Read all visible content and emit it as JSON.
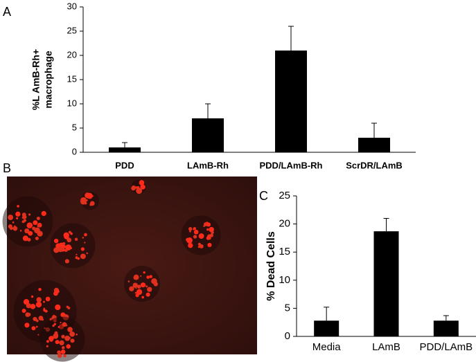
{
  "chart_data": [
    {
      "type": "bar",
      "panel": "A",
      "ylabel": [
        "%L AmB-Rh+",
        "macrophage"
      ],
      "categories": [
        "PDD",
        "LAmB-Rh",
        "PDD/LAmB-Rh",
        "ScrDR/LAmB"
      ],
      "values": [
        1,
        7,
        21,
        3
      ],
      "errors": [
        1,
        3,
        5,
        3
      ],
      "color": "#000000",
      "ylim": [
        0,
        30
      ],
      "yticks": [
        0,
        5,
        10,
        15,
        20,
        25,
        30
      ]
    },
    {
      "type": "bar",
      "panel": "C",
      "ylabel": [
        "% Dead Cells"
      ],
      "categories": [
        "Media",
        "LAmB",
        "PDD/LAmB"
      ],
      "values": [
        2.8,
        18.7,
        2.8
      ],
      "errors": [
        2.4,
        2.3,
        0.9
      ],
      "color": "#000000",
      "ylim": [
        0,
        25
      ],
      "yticks": [
        0,
        5,
        10,
        15,
        20,
        25
      ]
    }
  ],
  "image_panel": {
    "label": "B"
  }
}
